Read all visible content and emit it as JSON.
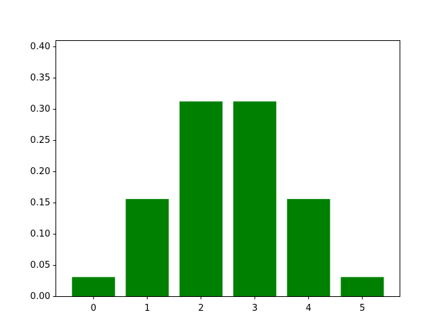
{
  "chart_data": {
    "type": "bar",
    "categories": [
      "0",
      "1",
      "2",
      "3",
      "4",
      "5"
    ],
    "values": [
      0.03125,
      0.15625,
      0.3125,
      0.3125,
      0.15625,
      0.03125
    ],
    "title": "",
    "xlabel": "",
    "ylabel": "",
    "xlim": [
      -0.7,
      5.7
    ],
    "ylim": [
      0,
      0.41
    ],
    "yticks": [
      0.0,
      0.05,
      0.1,
      0.15,
      0.2,
      0.25,
      0.3,
      0.35,
      0.4
    ],
    "ytick_labels": [
      "0.00",
      "0.05",
      "0.10",
      "0.15",
      "0.20",
      "0.25",
      "0.30",
      "0.35",
      "0.40"
    ],
    "grid": false,
    "colors": {
      "bar": "#008000",
      "axis": "#000000",
      "background": "#ffffff"
    }
  }
}
